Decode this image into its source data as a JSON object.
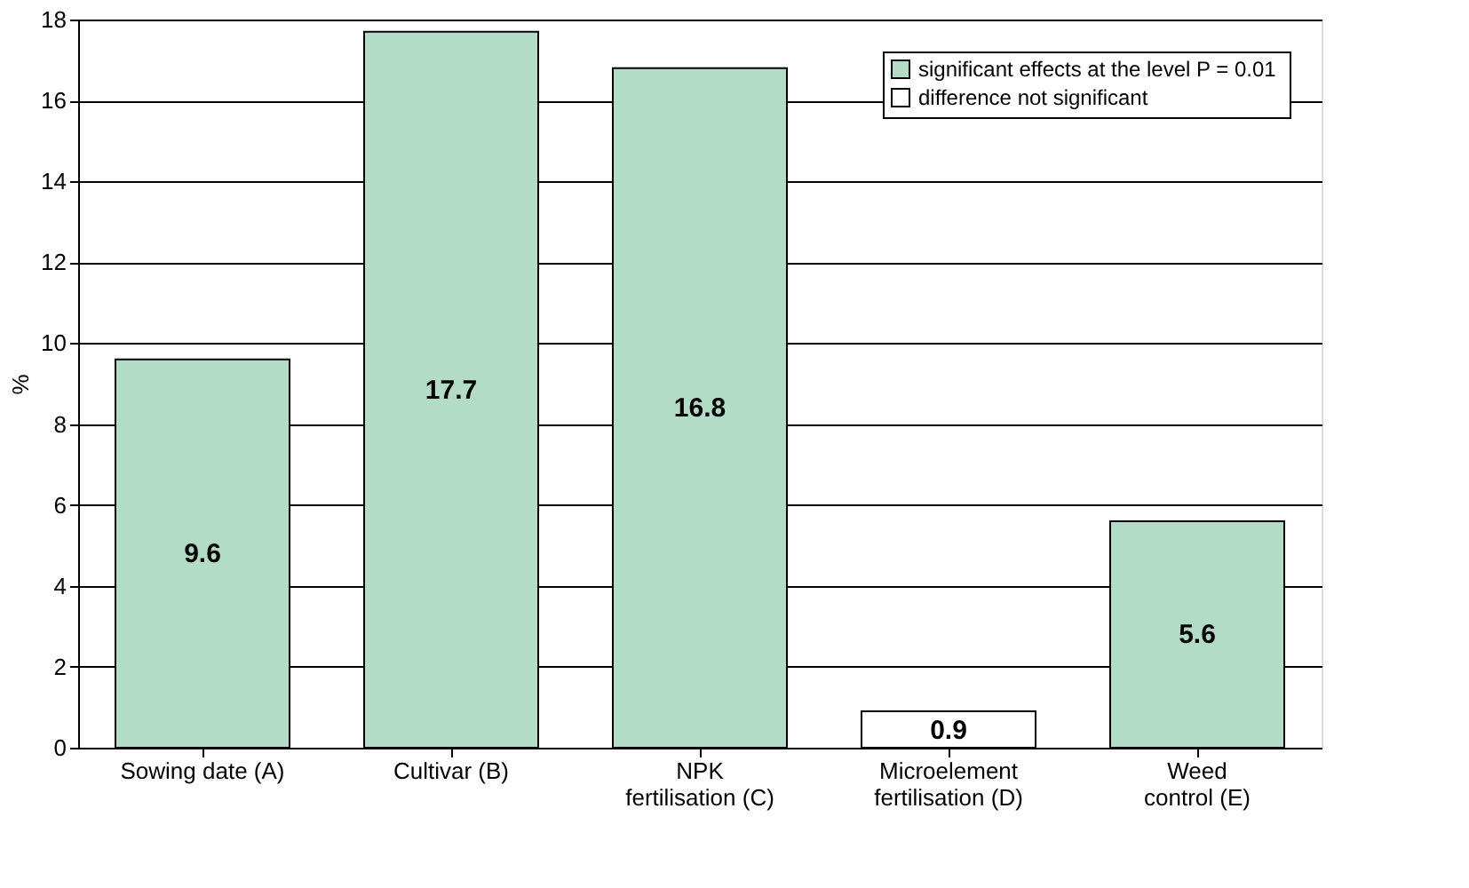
{
  "chart_data": {
    "type": "bar",
    "ylabel": "%",
    "categories": [
      "Sowing date (A)",
      "Cultivar (B)",
      "NPK\nfertilisation (C)",
      "Microelement\nfertilisation (D)",
      "Weed\ncontrol (E)"
    ],
    "series": [
      {
        "name": "significant effects at the level  P = 0.01",
        "color": "#b3dcc6",
        "values": [
          9.6,
          17.7,
          16.8,
          null,
          5.6
        ]
      },
      {
        "name": "difference not significant",
        "color": "#ffffff",
        "values": [
          null,
          null,
          null,
          0.9,
          null
        ]
      }
    ],
    "data_labels": true,
    "ylim": [
      0,
      18
    ],
    "yticks": [
      0,
      2,
      4,
      6,
      8,
      10,
      12,
      14,
      16,
      18
    ],
    "grid": "y",
    "legend": "top right"
  }
}
